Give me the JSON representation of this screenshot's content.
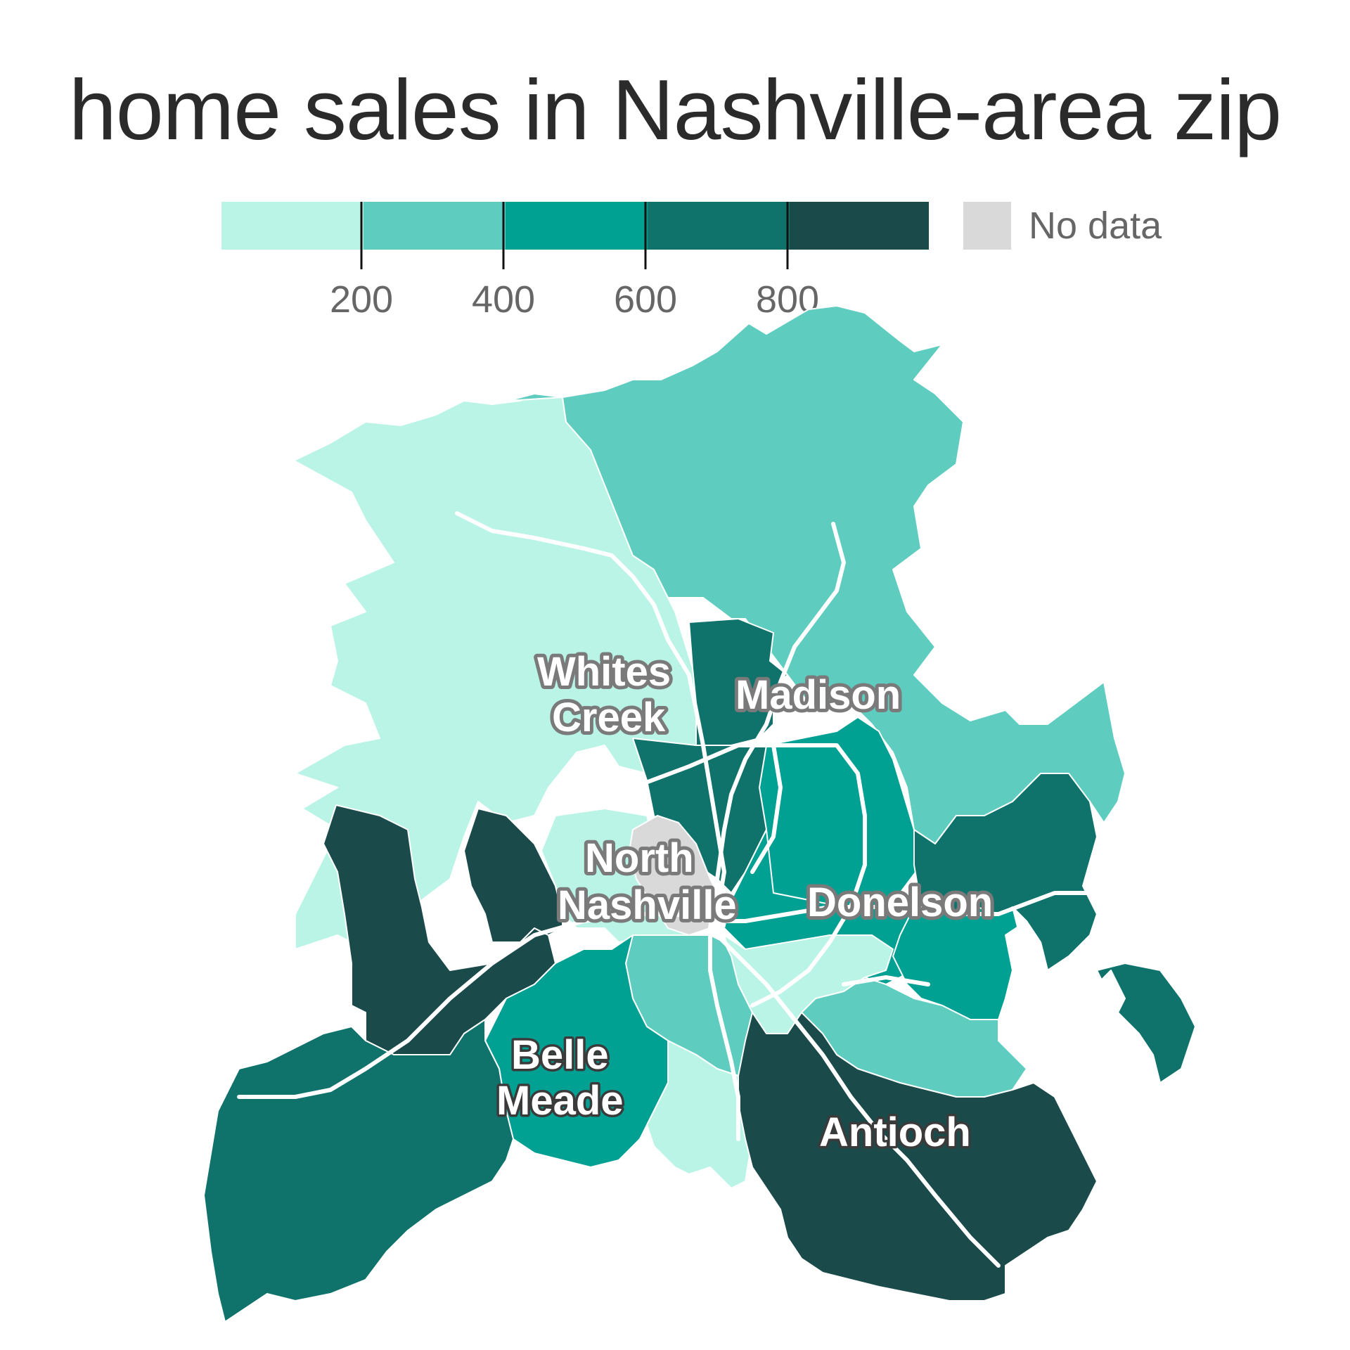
{
  "title": "home sales in Nashville-area zip",
  "legend": {
    "colors": [
      "#b9f4e6",
      "#5ecdbf",
      "#00a092",
      "#0f736b",
      "#1b4a4a"
    ],
    "ticks": [
      "200",
      "400",
      "600",
      "800"
    ],
    "no_data_color": "#d9d9d9",
    "no_data_label": "No data"
  },
  "map": {
    "road_color": "#ffffff",
    "region_colors": {
      "lightest": "#b9f4e6",
      "light": "#5ecdbf",
      "mid": "#00a092",
      "dark": "#0f736b",
      "darkest": "#1b4a4a",
      "no_data": "#d9d9d9"
    },
    "places": [
      {
        "name": "Whites",
        "style": "light"
      },
      {
        "name": "Creek",
        "style": "light"
      },
      {
        "name": "Madison",
        "style": "light"
      },
      {
        "name": "North",
        "style": "light"
      },
      {
        "name": "Nashville",
        "style": "light"
      },
      {
        "name": "Donelson",
        "style": "light"
      },
      {
        "name": "Belle",
        "style": "dark"
      },
      {
        "name": "Meade",
        "style": "dark"
      },
      {
        "name": "Antioch",
        "style": "dark"
      }
    ]
  }
}
